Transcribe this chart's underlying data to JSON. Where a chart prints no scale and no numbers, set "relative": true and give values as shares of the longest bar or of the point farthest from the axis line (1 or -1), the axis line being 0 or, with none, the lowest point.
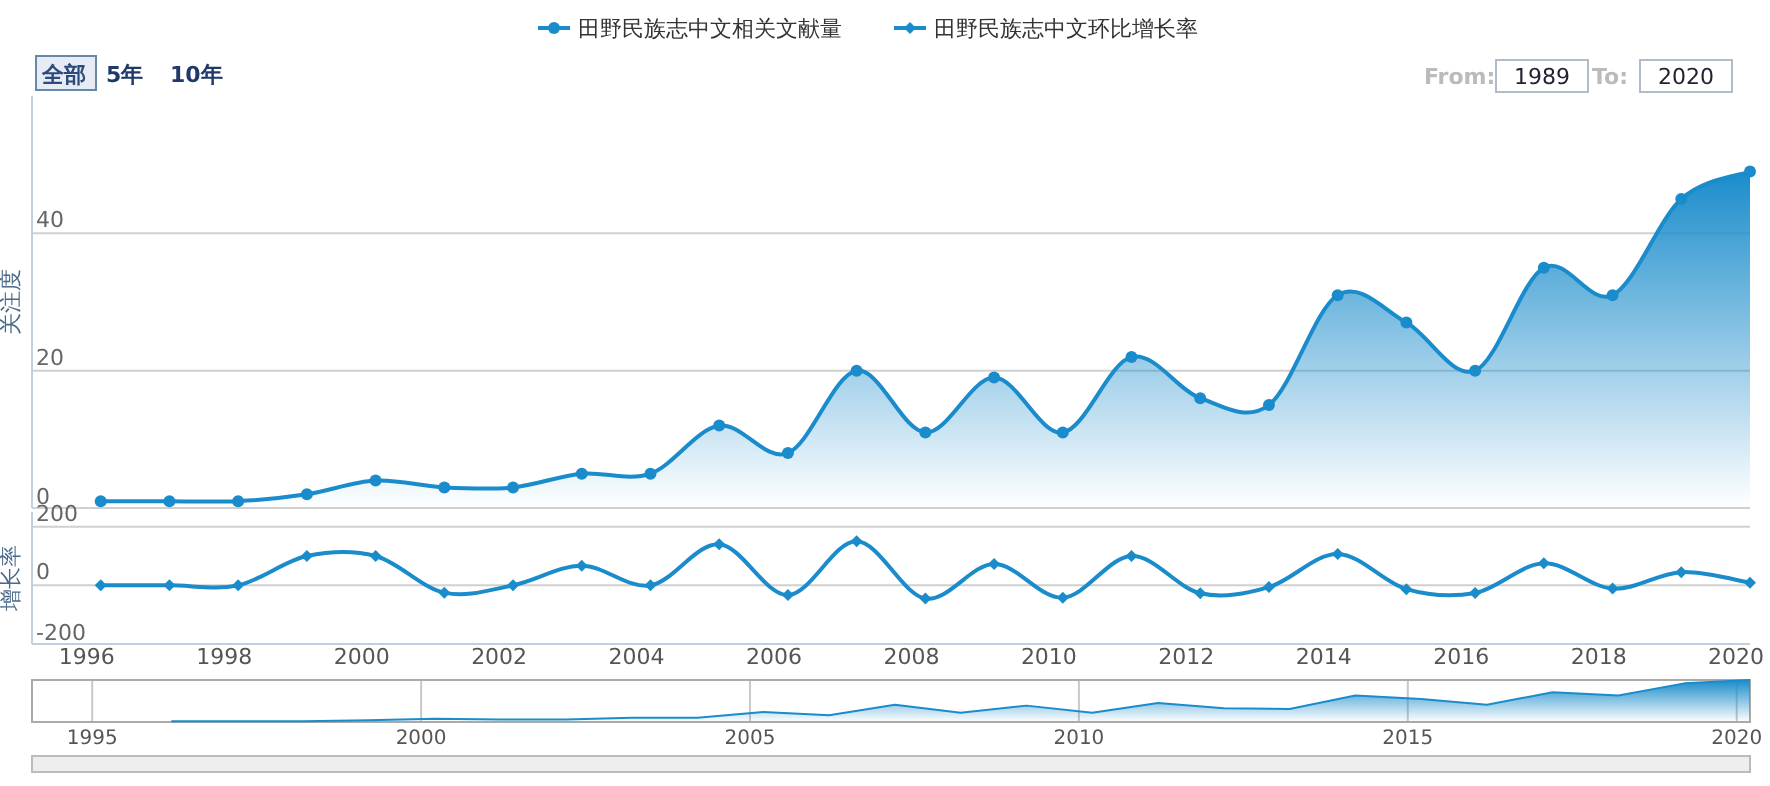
{
  "chart_data": [
    {
      "type": "area",
      "ylabel": "关注度",
      "legend": "top",
      "grid": "y",
      "tick_labels": "y",
      "marker": "circle",
      "annotations": [
        "全部",
        "5年",
        "10年",
        "From:",
        "1989",
        "To:",
        "2020"
      ],
      "x": [
        "1996-03-15",
        "1997-03-15",
        "1998-03-15",
        "1999-03-15",
        "2000-03-15",
        "2001-03-15",
        "2002-03-15",
        "2003-03-15",
        "2004-03-15",
        "2005-03-15",
        "2006-03-15",
        "2007-03-15",
        "2008-03-15",
        "2009-03-15",
        "2010-03-15",
        "2011-03-15",
        "2012-03-15",
        "2013-03-15",
        "2014-03-15",
        "2015-03-15",
        "2016-03-15",
        "2017-03-15",
        "2018-03-15",
        "2019-03-15",
        "2020-03-15"
      ],
      "xlim": [
        "1995-03-15",
        "2020-03-15"
      ],
      "ylim": [
        0,
        60
      ],
      "yticks": [
        0,
        20,
        40
      ],
      "series": [
        {
          "name": "田野民族志中文相关文献量",
          "color": "#1a8ccb",
          "values": [
            1,
            1,
            1,
            2,
            4,
            3,
            3,
            5,
            5,
            12,
            8,
            20,
            11,
            19,
            11,
            22,
            16,
            15,
            31,
            27,
            20,
            35,
            31,
            45,
            49
          ]
        }
      ]
    },
    {
      "type": "line",
      "ylabel": "增长率",
      "legend": "top",
      "grid": "y",
      "marker": "diamond",
      "x": [
        "1996-03-15",
        "1997-03-15",
        "1998-03-15",
        "1999-03-15",
        "2000-03-15",
        "2001-03-15",
        "2002-03-15",
        "2003-03-15",
        "2004-03-15",
        "2005-03-15",
        "2006-03-15",
        "2007-03-15",
        "2008-03-15",
        "2009-03-15",
        "2010-03-15",
        "2011-03-15",
        "2012-03-15",
        "2013-03-15",
        "2014-03-15",
        "2015-03-15",
        "2016-03-15",
        "2017-03-15",
        "2018-03-15",
        "2019-03-15",
        "2020-03-15"
      ],
      "xlim": [
        "1995-03-15",
        "2020-03-15"
      ],
      "xticks": [
        "1996",
        "1998",
        "2000",
        "2002",
        "2004",
        "2006",
        "2008",
        "2010",
        "2012",
        "2014",
        "2016",
        "2018",
        "2020"
      ],
      "ylim": [
        -200,
        250
      ],
      "yticks": [
        -200,
        0,
        200
      ],
      "series": [
        {
          "name": "田野民族志中文环比增长率",
          "color": "#1a8ccb",
          "values": [
            0,
            0,
            0,
            100,
            100,
            -25,
            0,
            67,
            0,
            140,
            -33,
            150,
            -45,
            73,
            -42,
            100,
            -27,
            -6,
            107,
            -13,
            -26,
            75,
            -11,
            45,
            9
          ]
        }
      ]
    },
    {
      "type": "area",
      "relative": true,
      "grid": "x",
      "color": "#1a8ccb",
      "x": [
        "1996-03-15",
        "1997-03-15",
        "1998-03-15",
        "1999-03-15",
        "2000-03-15",
        "2001-03-15",
        "2002-03-15",
        "2003-03-15",
        "2004-03-15",
        "2005-03-15",
        "2006-03-15",
        "2007-03-15",
        "2008-03-15",
        "2009-03-15",
        "2010-03-15",
        "2011-03-15",
        "2012-03-15",
        "2013-03-15",
        "2014-03-15",
        "2015-03-15",
        "2016-03-15",
        "2017-03-15",
        "2018-03-15",
        "2019-03-15",
        "2020-03-15"
      ],
      "xlim": [
        "1994-02-01",
        "2020-03-15"
      ],
      "xticks": [
        "1995",
        "2000",
        "2005",
        "2010",
        "2015",
        "2020"
      ],
      "values": [
        0.02,
        0.02,
        0.02,
        0.04,
        0.08,
        0.06,
        0.06,
        0.1,
        0.1,
        0.24,
        0.16,
        0.41,
        0.22,
        0.39,
        0.22,
        0.45,
        0.33,
        0.31,
        0.63,
        0.55,
        0.41,
        0.71,
        0.63,
        0.92,
        1
      ]
    }
  ]
}
